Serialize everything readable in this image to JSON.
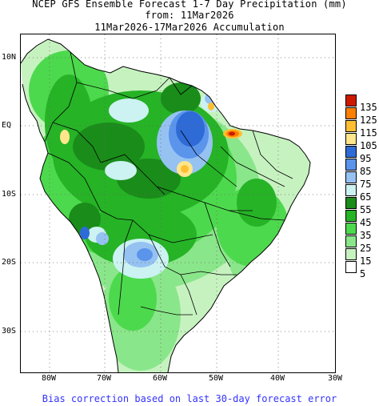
{
  "header": {
    "title": "NCEP GFS Ensemble Forecast 1-7 Day Precipitation (mm)",
    "from": "from: 11Mar2026",
    "range": "11Mar2026-17Mar2026 Accumulation"
  },
  "axes": {
    "lat_labels": [
      "10N",
      "EQ",
      "10S",
      "20S",
      "30S"
    ],
    "lon_labels": [
      "80W",
      "70W",
      "60W",
      "50W",
      "40W",
      "30W"
    ]
  },
  "legend": {
    "items": [
      {
        "label": "135",
        "color": "#cc1a00"
      },
      {
        "label": "125",
        "color": "#ff7f00"
      },
      {
        "label": "115",
        "color": "#ffbf33"
      },
      {
        "label": "105",
        "color": "#ffe68c"
      },
      {
        "label": "95",
        "color": "#2e6bd6"
      },
      {
        "label": "85",
        "color": "#5b94eb"
      },
      {
        "label": "75",
        "color": "#96c2f2"
      },
      {
        "label": "65",
        "color": "#ccf2f2"
      },
      {
        "label": "55",
        "color": "#1a8c1a"
      },
      {
        "label": "45",
        "color": "#26b326"
      },
      {
        "label": "35",
        "color": "#4dd94d"
      },
      {
        "label": "25",
        "color": "#8ae68a"
      },
      {
        "label": "15",
        "color": "#c6f2c0"
      },
      {
        "label": "5",
        "color": "#ffffff"
      }
    ]
  },
  "footer": {
    "note": "Bias correction based on last 30-day forecast error"
  }
}
